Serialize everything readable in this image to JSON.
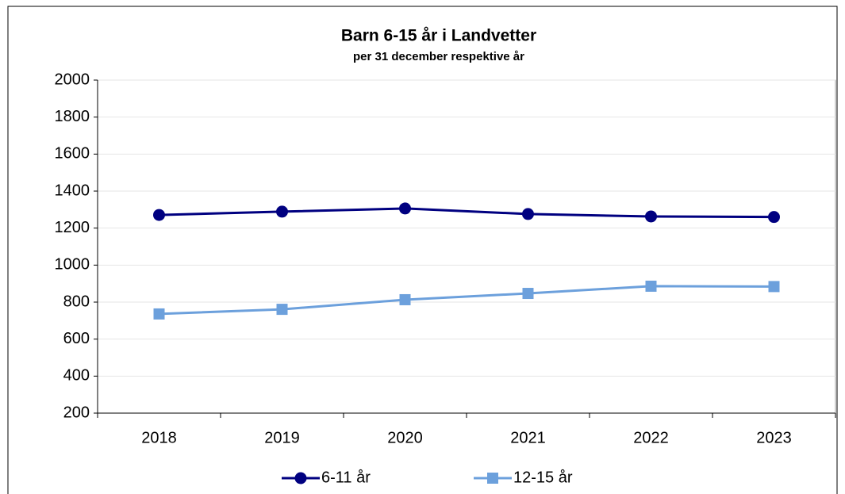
{
  "chart_data": {
    "type": "line",
    "title": "Barn 6-15 år i Landvetter",
    "subtitle": "per 31 december respektive år",
    "categories": [
      "2018",
      "2019",
      "2020",
      "2021",
      "2022",
      "2023"
    ],
    "series": [
      {
        "name": "6-11 år",
        "color": "#000080",
        "marker": "circle",
        "values": [
          1271,
          1289,
          1306,
          1276,
          1263,
          1260
        ]
      },
      {
        "name": "12-15 år",
        "color": "#6ca0dc",
        "marker": "square",
        "values": [
          736,
          761,
          813,
          847,
          886,
          884
        ]
      }
    ],
    "ylim": [
      200,
      2000
    ],
    "yticks": [
      200,
      400,
      600,
      800,
      1000,
      1200,
      1400,
      1600,
      1800,
      2000
    ],
    "grid": true,
    "legend": "bottom"
  }
}
